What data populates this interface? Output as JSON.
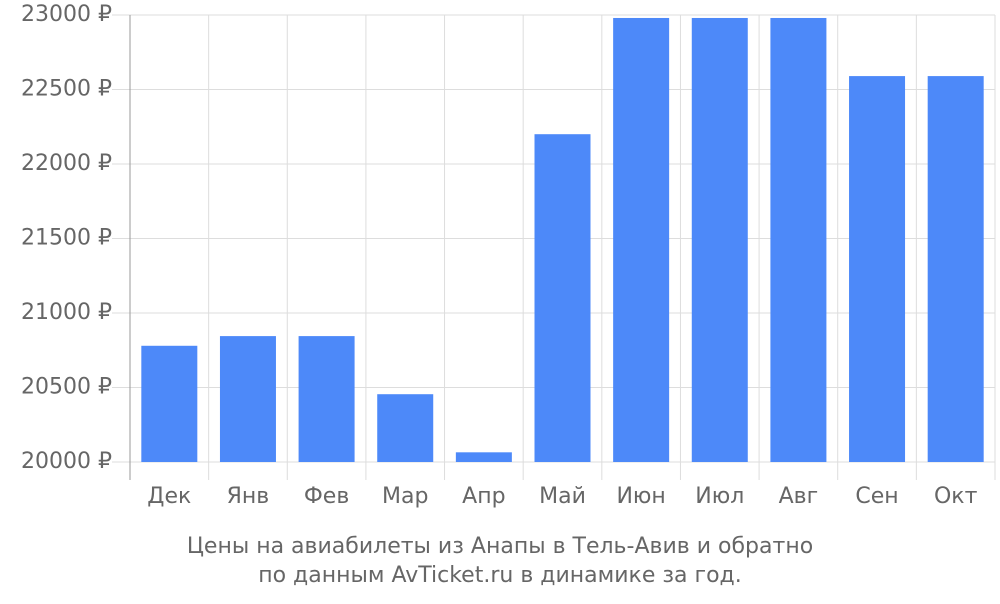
{
  "chart_data": {
    "type": "bar",
    "title": [
      "Цены на авиабилеты из Анапы в Тель-Авив и обратно",
      "по данным AvTicket.ru в динамике за год."
    ],
    "categories": [
      "Дек",
      "Янв",
      "Фев",
      "Мар",
      "Апр",
      "Май",
      "Июн",
      "Июл",
      "Авг",
      "Сен",
      "Окт"
    ],
    "values": [
      20780,
      20845,
      20845,
      20455,
      20065,
      22200,
      22980,
      22980,
      22980,
      22590,
      22590
    ],
    "color": "#4d89f9",
    "ylim": [
      20000,
      23000
    ],
    "yticks": [
      {
        "value": 20000,
        "label": "20000 ₽"
      },
      {
        "value": 20500,
        "label": "20500 ₽"
      },
      {
        "value": 21000,
        "label": "21000 ₽"
      },
      {
        "value": 21500,
        "label": "21500 ₽"
      },
      {
        "value": 22000,
        "label": "22000 ₽"
      },
      {
        "value": 22500,
        "label": "22500 ₽"
      },
      {
        "value": 23000,
        "label": "23000 ₽"
      }
    ],
    "grid": true
  }
}
